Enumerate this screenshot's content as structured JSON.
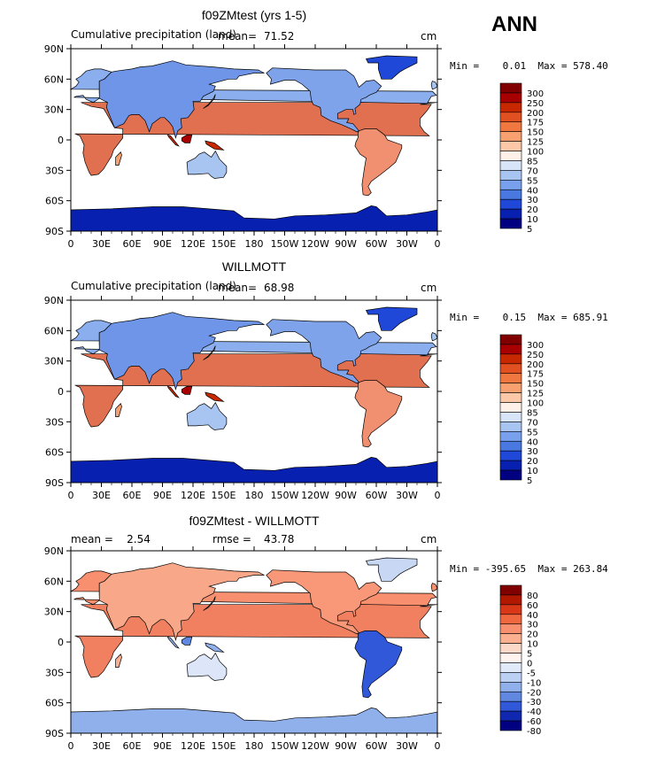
{
  "season": "ANN",
  "panels": [
    {
      "title": "f09ZMtest (yrs 1-5)",
      "left_label": "Cumulative precipitation (land)",
      "mean_label": "mean=",
      "mean_value": "71.52",
      "units": "cm",
      "minmax": "Min =    0.01  Max = 578.40",
      "colorbar": [
        "300",
        "250",
        "200",
        "175",
        "150",
        "125",
        "100",
        "85",
        "70",
        "55",
        "40",
        "30",
        "20",
        "10",
        "5"
      ]
    },
    {
      "title": "WILLMOTT",
      "left_label": "Cumulative precipitation (land)",
      "mean_label": "mean=",
      "mean_value": "68.98",
      "units": "cm",
      "minmax": "Min =    0.15  Max = 685.91",
      "colorbar": [
        "300",
        "250",
        "200",
        "175",
        "150",
        "125",
        "100",
        "85",
        "70",
        "55",
        "40",
        "30",
        "20",
        "10",
        "5"
      ]
    },
    {
      "title": "f09ZMtest - WILLMOTT",
      "left_label": "mean =    2.54",
      "mean_label": "rmse =",
      "mean_value": "43.78",
      "units": "cm",
      "minmax": "Min = -395.65  Max = 263.84",
      "colorbar": [
        "80",
        "60",
        "40",
        "30",
        "20",
        "10",
        "5",
        "0",
        "-5",
        "-10",
        "-20",
        "-30",
        "-40",
        "-60",
        "-80"
      ]
    }
  ],
  "axes": {
    "lat_ticks": [
      "90N",
      "60N",
      "30N",
      "0",
      "30S",
      "60S",
      "90S"
    ],
    "lon_ticks": [
      "0",
      "30E",
      "60E",
      "90E",
      "120E",
      "150E",
      "180",
      "150W",
      "120W",
      "90W",
      "60W",
      "30W",
      "0"
    ]
  },
  "colors": {
    "abs_scale": [
      "#800000",
      "#a80000",
      "#c82800",
      "#e05020",
      "#f07840",
      "#f8a070",
      "#fcc8a8",
      "#fff0e8",
      "#d8e4f8",
      "#a8c4f0",
      "#78a0ec",
      "#4878e0",
      "#2048d8",
      "#0820b0",
      "#000080"
    ],
    "diff_scale": [
      "#800000",
      "#b01800",
      "#d83818",
      "#f06840",
      "#f89070",
      "#fcb090",
      "#fcd8c8",
      "#fff4f0",
      "#e0eaf8",
      "#bcd0f4",
      "#90b0ec",
      "#6088e0",
      "#3058d8",
      "#1028b0",
      "#000080"
    ]
  }
}
